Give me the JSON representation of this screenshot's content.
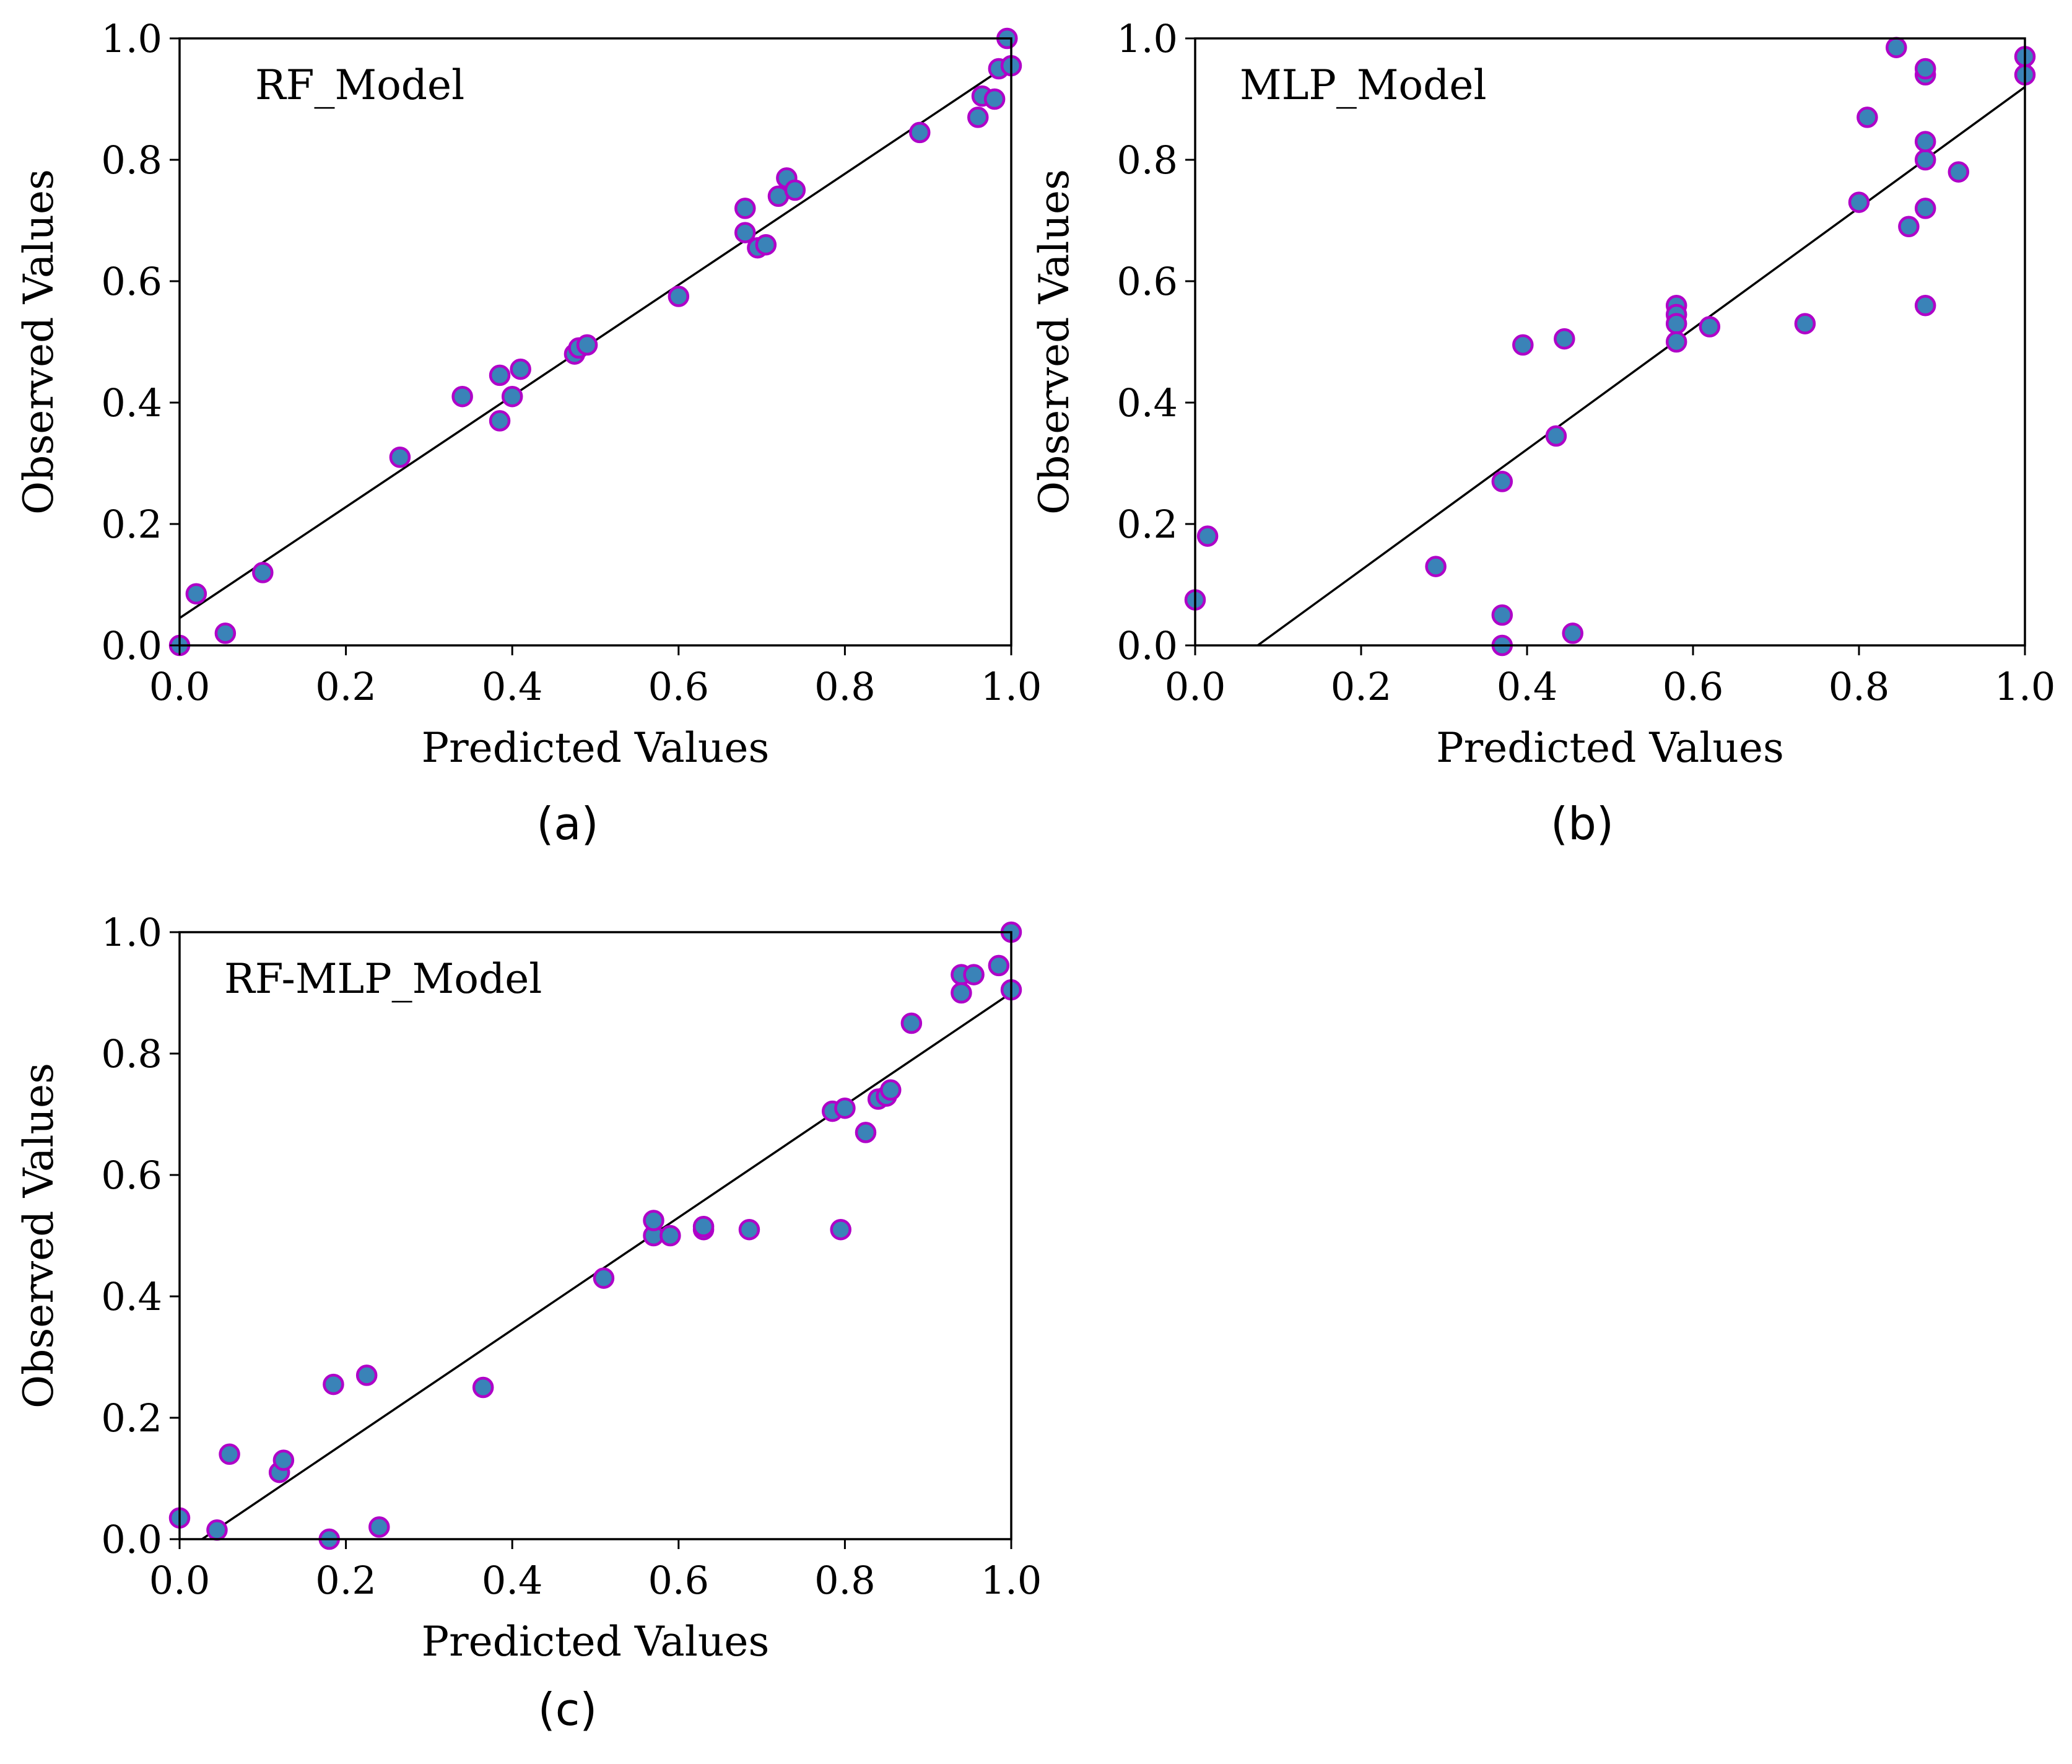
{
  "colors": {
    "marker_fill": "#3a83b8",
    "marker_edge": "#b000c8",
    "line": "#000000"
  },
  "chart_data": [
    {
      "type": "scatter",
      "caption": "(a)",
      "model_label": "RF_Model",
      "xlabel": "Predicted Values",
      "ylabel": "Observed Values",
      "xlim": [
        0,
        1
      ],
      "ylim": [
        0,
        1
      ],
      "xticks": [
        "0.0",
        "0.2",
        "0.4",
        "0.6",
        "0.8",
        "1.0"
      ],
      "yticks": [
        "0.0",
        "0.2",
        "0.4",
        "0.6",
        "0.8",
        "1.0"
      ],
      "grid": false,
      "fit_line": {
        "intercept": 0.045,
        "slope": 0.915
      },
      "points": [
        [
          0.0,
          0.0
        ],
        [
          0.02,
          0.085
        ],
        [
          0.055,
          0.02
        ],
        [
          0.1,
          0.12
        ],
        [
          0.265,
          0.31
        ],
        [
          0.34,
          0.41
        ],
        [
          0.385,
          0.37
        ],
        [
          0.385,
          0.445
        ],
        [
          0.4,
          0.41
        ],
        [
          0.41,
          0.455
        ],
        [
          0.475,
          0.48
        ],
        [
          0.48,
          0.49
        ],
        [
          0.49,
          0.495
        ],
        [
          0.6,
          0.575
        ],
        [
          0.68,
          0.72
        ],
        [
          0.68,
          0.68
        ],
        [
          0.695,
          0.655
        ],
        [
          0.705,
          0.66
        ],
        [
          0.72,
          0.74
        ],
        [
          0.73,
          0.77
        ],
        [
          0.74,
          0.75
        ],
        [
          0.89,
          0.845
        ],
        [
          0.96,
          0.87
        ],
        [
          0.965,
          0.905
        ],
        [
          0.98,
          0.9
        ],
        [
          0.985,
          0.95
        ],
        [
          0.995,
          1.0
        ],
        [
          1.0,
          0.955
        ]
      ]
    },
    {
      "type": "scatter",
      "caption": "(b)",
      "model_label": "MLP_Model",
      "xlabel": "Predicted Values",
      "ylabel": "Observed Values",
      "xlim": [
        0,
        1
      ],
      "ylim": [
        0,
        1
      ],
      "xticks": [
        "0.0",
        "0.2",
        "0.4",
        "0.6",
        "0.8",
        "1.0"
      ],
      "yticks": [
        "0.0",
        "0.2",
        "0.4",
        "0.6",
        "0.8",
        "1.0"
      ],
      "grid": false,
      "fit_line": {
        "intercept": -0.075,
        "slope": 0.995
      },
      "points": [
        [
          0.0,
          0.075
        ],
        [
          0.015,
          0.18
        ],
        [
          0.29,
          0.13
        ],
        [
          0.37,
          0.05
        ],
        [
          0.37,
          0.0
        ],
        [
          0.37,
          0.27
        ],
        [
          0.395,
          0.495
        ],
        [
          0.435,
          0.345
        ],
        [
          0.445,
          0.505
        ],
        [
          0.455,
          0.02
        ],
        [
          0.58,
          0.56
        ],
        [
          0.58,
          0.545
        ],
        [
          0.58,
          0.53
        ],
        [
          0.58,
          0.5
        ],
        [
          0.62,
          0.525
        ],
        [
          0.735,
          0.53
        ],
        [
          0.8,
          0.73
        ],
        [
          0.81,
          0.87
        ],
        [
          0.845,
          0.985
        ],
        [
          0.86,
          0.69
        ],
        [
          0.88,
          0.56
        ],
        [
          0.88,
          0.72
        ],
        [
          0.88,
          0.8
        ],
        [
          0.88,
          0.83
        ],
        [
          0.88,
          0.94
        ],
        [
          0.88,
          0.95
        ],
        [
          0.92,
          0.78
        ],
        [
          1.0,
          0.97
        ],
        [
          1.0,
          0.94
        ]
      ]
    },
    {
      "type": "scatter",
      "caption": "(c)",
      "model_label": "RF-MLP_Model",
      "xlabel": "Predicted Values",
      "ylabel": "Observed Values",
      "xlim": [
        0,
        1
      ],
      "ylim": [
        0,
        1
      ],
      "xticks": [
        "0.0",
        "0.2",
        "0.4",
        "0.6",
        "0.8",
        "1.0"
      ],
      "yticks": [
        "0.0",
        "0.2",
        "0.4",
        "0.6",
        "0.8",
        "1.0"
      ],
      "grid": false,
      "fit_line": {
        "intercept": -0.025,
        "slope": 0.925
      },
      "points": [
        [
          0.0,
          0.035
        ],
        [
          0.045,
          0.015
        ],
        [
          0.06,
          0.14
        ],
        [
          0.12,
          0.11
        ],
        [
          0.125,
          0.13
        ],
        [
          0.18,
          0.0
        ],
        [
          0.185,
          0.255
        ],
        [
          0.225,
          0.27
        ],
        [
          0.24,
          0.02
        ],
        [
          0.365,
          0.25
        ],
        [
          0.51,
          0.43
        ],
        [
          0.57,
          0.5
        ],
        [
          0.57,
          0.525
        ],
        [
          0.59,
          0.5
        ],
        [
          0.63,
          0.51
        ],
        [
          0.63,
          0.515
        ],
        [
          0.685,
          0.51
        ],
        [
          0.785,
          0.705
        ],
        [
          0.795,
          0.51
        ],
        [
          0.8,
          0.71
        ],
        [
          0.825,
          0.67
        ],
        [
          0.84,
          0.725
        ],
        [
          0.85,
          0.73
        ],
        [
          0.855,
          0.74
        ],
        [
          0.88,
          0.85
        ],
        [
          0.94,
          0.93
        ],
        [
          0.94,
          0.9
        ],
        [
          0.955,
          0.93
        ],
        [
          0.985,
          0.945
        ],
        [
          1.0,
          1.0
        ],
        [
          1.0,
          0.905
        ]
      ]
    }
  ]
}
